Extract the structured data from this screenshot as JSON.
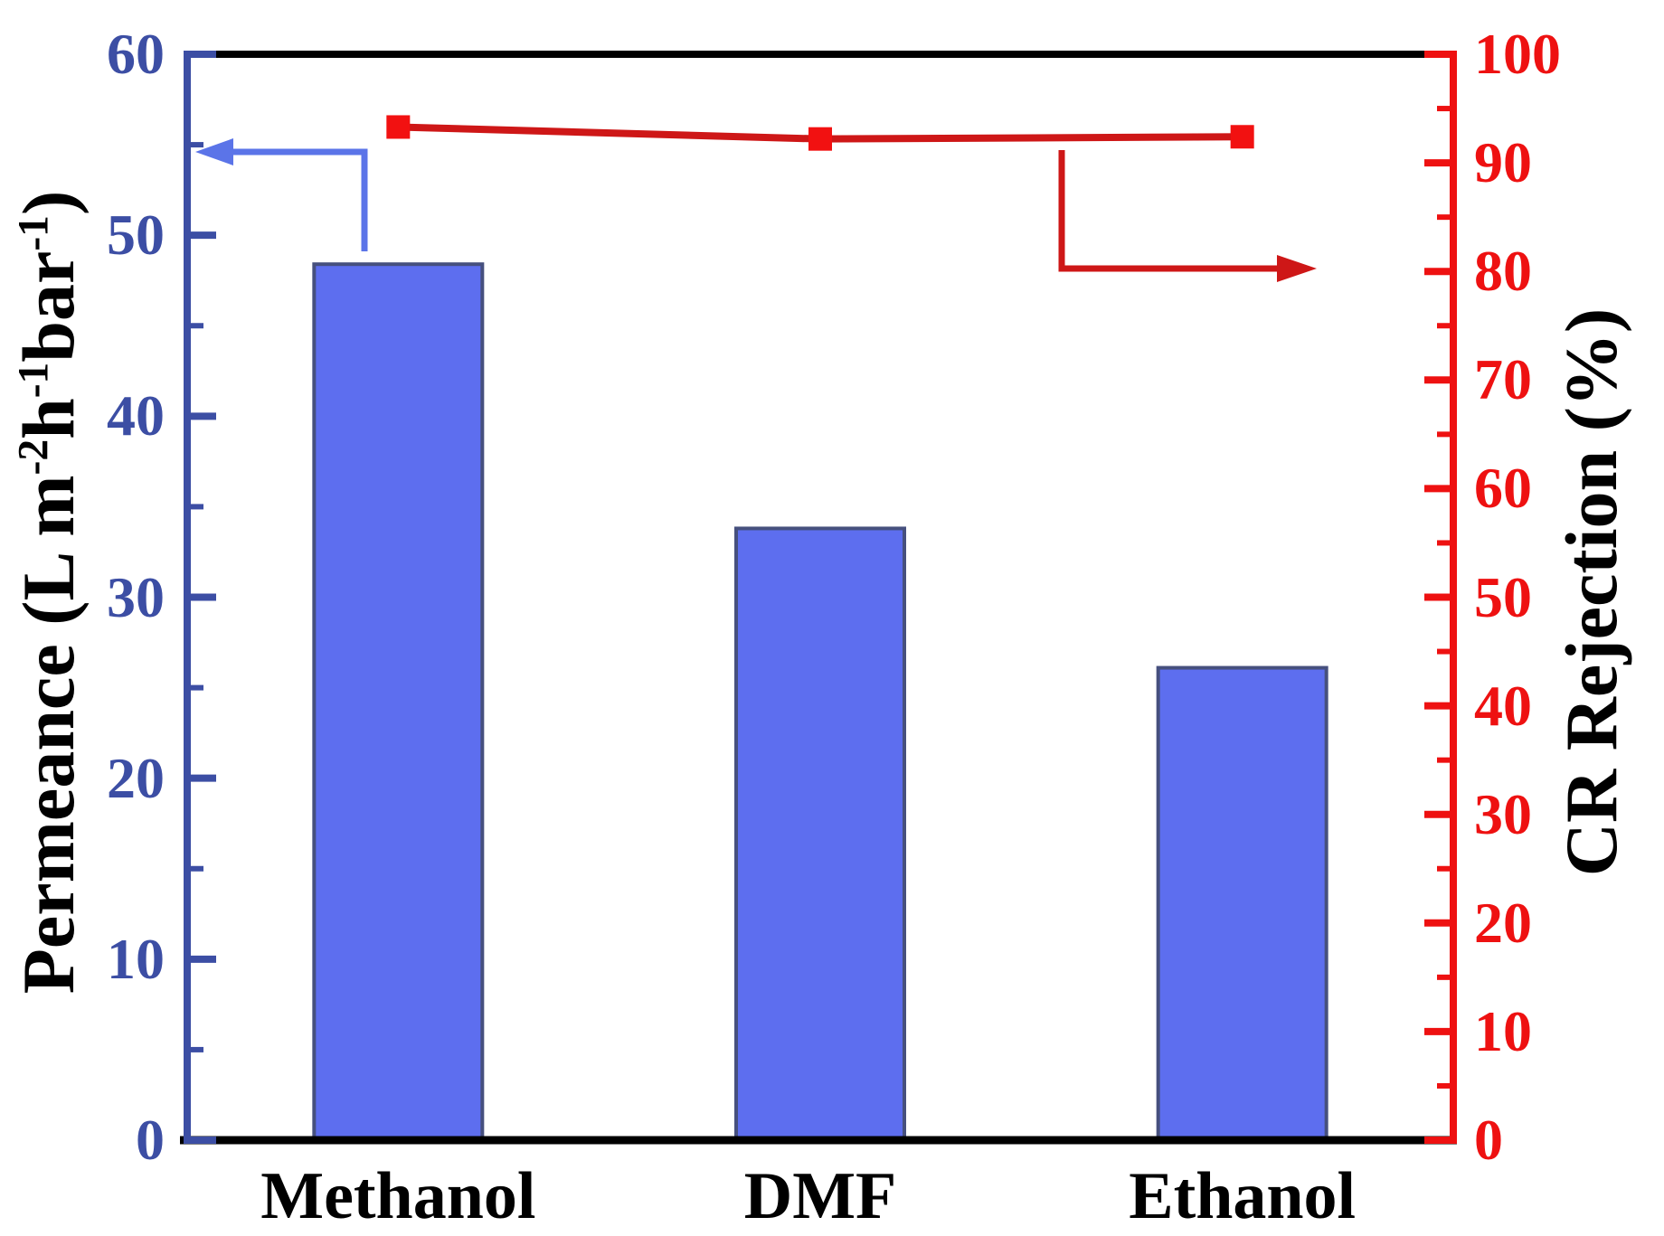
{
  "figure": {
    "background": "#ffffff"
  },
  "chart_data": {
    "type": "bar",
    "subtype": "dual-axis bar + line",
    "categories": [
      "Methanol",
      "DMF",
      "Ethanol"
    ],
    "series": [
      {
        "name": "Permeance",
        "type": "bar",
        "axis": "left",
        "values": [
          48.4,
          33.8,
          26.1
        ],
        "fill": "#5D6EEF",
        "border": "#46507E"
      },
      {
        "name": "CR Rejection",
        "type": "line",
        "axis": "right",
        "values": [
          93.3,
          92.2,
          92.4
        ],
        "line_color": "#CE1717",
        "marker_color": "#F21111",
        "marker": "square"
      }
    ],
    "left_axis": {
      "title": "Permeance (L m⁻²h⁻¹bar⁻¹)",
      "title_parts": [
        {
          "text": "Permeance (L m"
        },
        {
          "sup": "-2"
        },
        {
          "text": "h"
        },
        {
          "sup": "-1"
        },
        {
          "text": "bar"
        },
        {
          "sup": "-1"
        },
        {
          "text": ")"
        }
      ],
      "min": 0,
      "max": 60,
      "major_step": 10,
      "minor_step": 5,
      "tick_labels": [
        "0",
        "10",
        "20",
        "30",
        "40",
        "50",
        "60"
      ],
      "color": "#3C4EA4"
    },
    "right_axis": {
      "title": "CR Rejection (%)",
      "min": 0,
      "max": 100,
      "major_step": 10,
      "minor_step": 5,
      "tick_labels": [
        "0",
        "10",
        "20",
        "30",
        "40",
        "50",
        "60",
        "70",
        "80",
        "90",
        "100"
      ],
      "color": "#EE1111"
    },
    "x_axis": {
      "color": "#000000",
      "tick_labels": [
        "Methanol",
        "DMF",
        "Ethanol"
      ]
    },
    "grid": false,
    "legend": false
  },
  "annotations": {
    "left_arrow_color": "#5B74E8",
    "right_arrow_color": "#CE1717"
  }
}
